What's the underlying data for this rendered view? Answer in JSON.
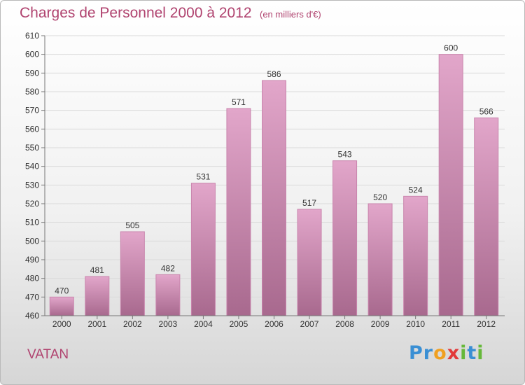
{
  "header": {
    "title": "Charges de Personnel 2000 à 2012",
    "subtitle": "(en milliers d'€)"
  },
  "footer": {
    "commune": "VATAN",
    "logo_letters": [
      {
        "char": "P",
        "color": "#3a8fd4"
      },
      {
        "char": "r",
        "color": "#3a8fd4"
      },
      {
        "char": "o",
        "color": "#f0a020"
      },
      {
        "char": "x",
        "color": "#e23a3a"
      },
      {
        "char": "i",
        "color": "#66b83a"
      },
      {
        "char": "t",
        "color": "#3a8fd4"
      },
      {
        "char": "i",
        "color": "#66b83a"
      }
    ]
  },
  "colors": {
    "bar_top": "#e2a6ca",
    "bar_bottom": "#a8698e",
    "bar_stroke": "#c985ad",
    "accent": "#b0436f"
  },
  "chart_data": {
    "type": "bar",
    "title": "Charges de Personnel 2000 à 2012",
    "subtitle": "(en milliers d'€)",
    "xlabel": "",
    "ylabel": "",
    "categories": [
      "2000",
      "2001",
      "2002",
      "2003",
      "2004",
      "2005",
      "2006",
      "2007",
      "2008",
      "2009",
      "2010",
      "2011",
      "2012"
    ],
    "values": [
      470,
      481,
      505,
      482,
      531,
      571,
      586,
      517,
      543,
      520,
      524,
      600,
      566
    ],
    "ylim": [
      460,
      610
    ],
    "yticks": [
      460,
      470,
      480,
      490,
      500,
      510,
      520,
      530,
      540,
      550,
      560,
      570,
      580,
      590,
      600,
      610
    ],
    "grid": true,
    "legend": "none"
  }
}
